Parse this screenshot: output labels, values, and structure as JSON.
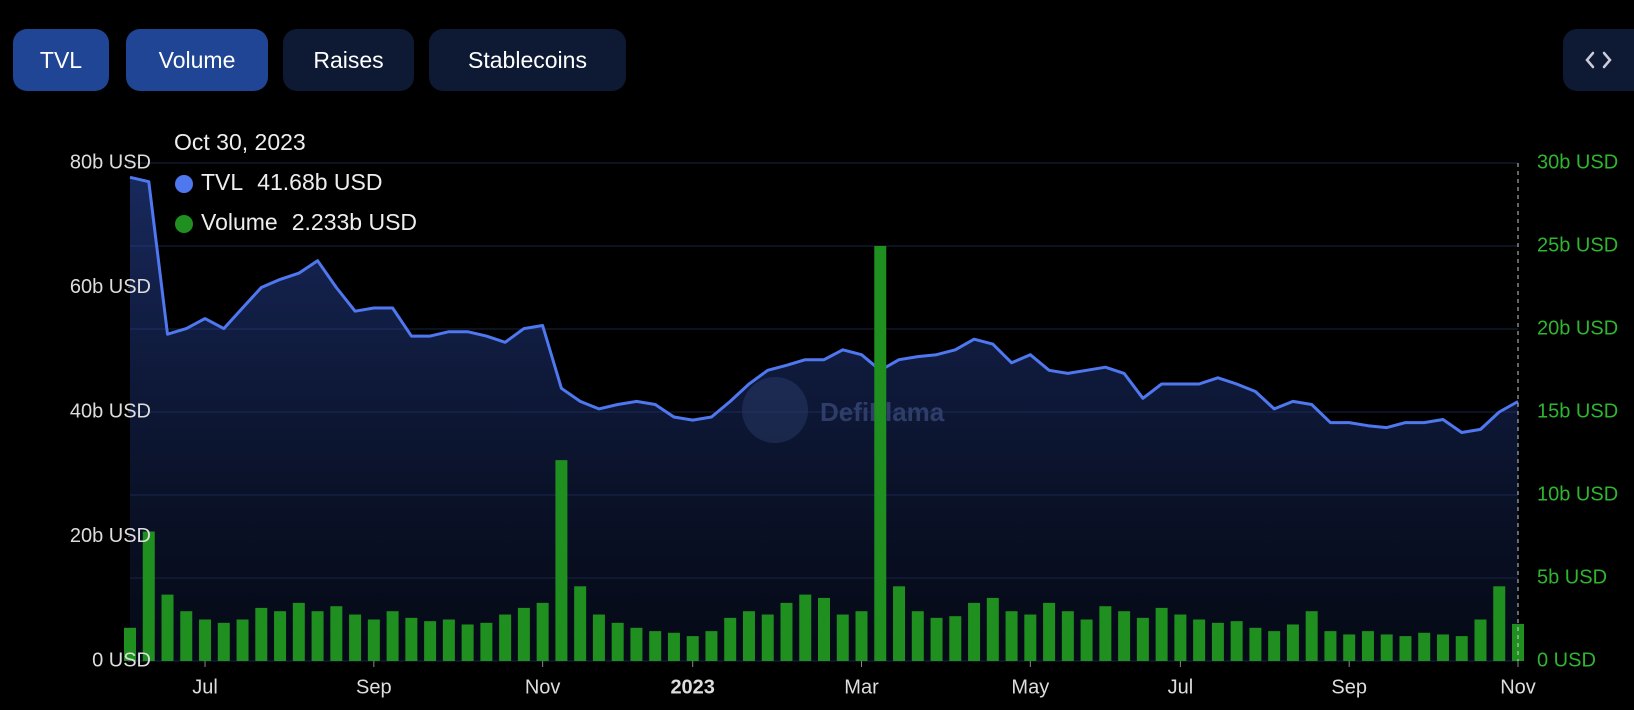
{
  "ui": {
    "buttons": [
      "TVL",
      "Volume",
      "Raises",
      "Stablecoins"
    ],
    "active": [
      true,
      true,
      false,
      false
    ],
    "watermark": "DefiLlama"
  },
  "chart_data": {
    "type": "combo",
    "categories": [
      null,
      null,
      null,
      null,
      "Jul",
      null,
      null,
      null,
      null,
      null,
      null,
      null,
      null,
      "Sep",
      null,
      null,
      null,
      null,
      null,
      null,
      null,
      null,
      "Nov",
      null,
      null,
      null,
      null,
      null,
      null,
      null,
      "2023",
      null,
      null,
      null,
      null,
      null,
      null,
      null,
      null,
      "Mar",
      null,
      null,
      null,
      null,
      null,
      null,
      null,
      null,
      "May",
      null,
      null,
      null,
      null,
      null,
      null,
      null,
      "Jul",
      null,
      null,
      null,
      null,
      null,
      null,
      null,
      null,
      "Sep",
      null,
      null,
      null,
      null,
      null,
      null,
      null,
      null,
      "Nov"
    ],
    "series": [
      {
        "name": "TVL",
        "type": "line",
        "color": "#4f78f0",
        "values": [
          77.7,
          77,
          52.5,
          53.4,
          55,
          53.4,
          56.7,
          60,
          61.3,
          62.3,
          64.3,
          60,
          56.2,
          56.7,
          56.7,
          52.2,
          52.2,
          52.9,
          52.9,
          52.2,
          51.2,
          53.4,
          53.9,
          43.8,
          41.7,
          40.5,
          41.2,
          41.7,
          41.2,
          39.2,
          38.7,
          39.2,
          41.7,
          44.5,
          46.7,
          47.5,
          48.4,
          48.4,
          50,
          49.2,
          46.7,
          48.4,
          48.9,
          49.2,
          50,
          51.7,
          50.9,
          47.9,
          49.2,
          46.7,
          46.2,
          46.7,
          47.2,
          46.2,
          42.2,
          44.5,
          44.5,
          44.5,
          45.5,
          44.5,
          43.3,
          40.5,
          41.7,
          41.2,
          38.3,
          38.3,
          37.8,
          37.5,
          38.3,
          38.3,
          38.8,
          36.7,
          37.2,
          40,
          41.68
        ]
      },
      {
        "name": "Volume",
        "type": "bar",
        "axis": "y2",
        "color": "#1f8f1f",
        "values": [
          2.0,
          7.8,
          4.0,
          3.0,
          2.5,
          2.3,
          2.5,
          3.2,
          3.0,
          3.5,
          3.0,
          3.3,
          2.8,
          2.5,
          3.0,
          2.6,
          2.4,
          2.5,
          2.2,
          2.3,
          2.8,
          3.2,
          3.5,
          12.1,
          4.5,
          2.8,
          2.3,
          2.0,
          1.8,
          1.7,
          1.5,
          1.8,
          2.6,
          3.0,
          2.8,
          3.5,
          4.0,
          3.8,
          2.8,
          3.0,
          25.0,
          4.5,
          3.0,
          2.6,
          2.7,
          3.5,
          3.8,
          3.0,
          2.8,
          3.5,
          3.0,
          2.5,
          3.3,
          3.0,
          2.6,
          3.2,
          2.8,
          2.5,
          2.3,
          2.4,
          2.0,
          1.8,
          2.2,
          3.0,
          1.8,
          1.6,
          1.8,
          1.6,
          1.5,
          1.7,
          1.6,
          1.5,
          2.5,
          4.5,
          2.233
        ]
      }
    ],
    "ylim": [
      0,
      80
    ],
    "yticks": [
      {
        "value": 0,
        "label": "0 USD"
      },
      {
        "value": 20,
        "label": "20b USD"
      },
      {
        "value": 40,
        "label": "40b USD"
      },
      {
        "value": 60,
        "label": "60b USD"
      },
      {
        "value": 80,
        "label": "80b USD"
      }
    ],
    "y2lim": [
      0,
      30
    ],
    "y2ticks": [
      {
        "value": 0,
        "label": "0 USD"
      },
      {
        "value": 5,
        "label": "5b USD"
      },
      {
        "value": 10,
        "label": "10b USD"
      },
      {
        "value": 15,
        "label": "15b USD"
      },
      {
        "value": 20,
        "label": "20b USD"
      },
      {
        "value": 25,
        "label": "25b USD"
      },
      {
        "value": 30,
        "label": "30b USD"
      }
    ],
    "grid": true,
    "tooltip": {
      "date": "Oct 30, 2023",
      "values": [
        "41.68b USD",
        "2.233b USD"
      ]
    }
  }
}
